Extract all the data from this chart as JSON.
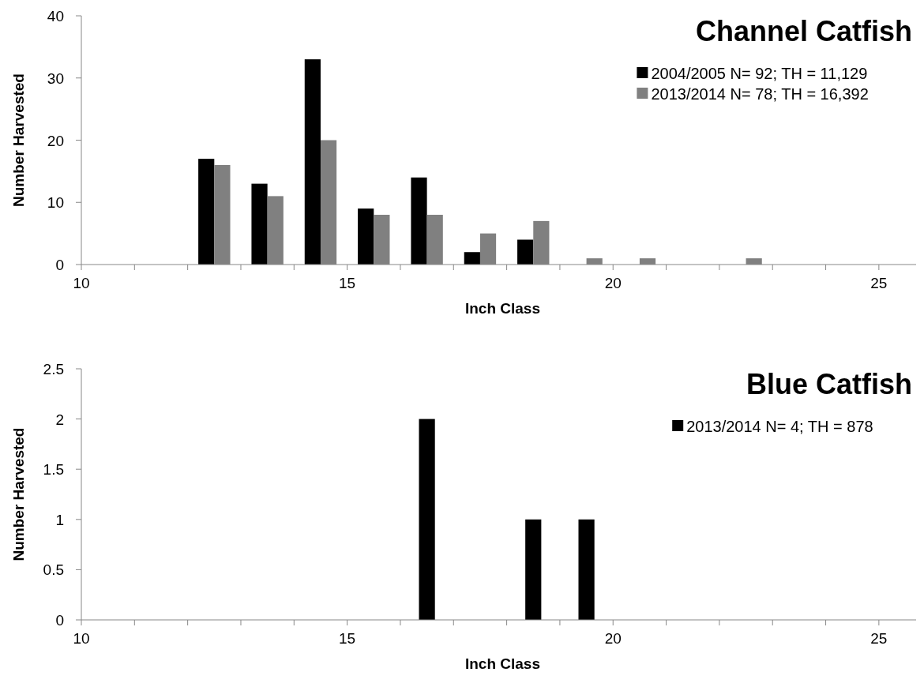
{
  "chart_data": [
    {
      "type": "bar",
      "title": "Channel Catfish",
      "xlabel": "Inch Class",
      "ylabel": "Number Harvested",
      "x": [
        12.5,
        13.5,
        14.5,
        15.5,
        16.5,
        17.5,
        18.5,
        19.5,
        20.5,
        22.5
      ],
      "series": [
        {
          "name": "2004/2005 N= 92; TH = 11,129",
          "color": "#000000",
          "values": [
            17,
            13,
            33,
            9,
            14,
            2,
            4,
            null,
            null,
            null
          ]
        },
        {
          "name": "2013/2014 N= 78; TH = 16,392",
          "color": "#808080",
          "values": [
            16,
            11,
            20,
            8,
            8,
            5,
            7,
            1,
            1,
            1
          ]
        }
      ],
      "xlim": [
        10,
        25.7
      ],
      "xticks": [
        10,
        {
          "value": 11,
          "label": null
        },
        {
          "value": 12,
          "label": null
        },
        {
          "value": 13,
          "label": null
        },
        {
          "value": 14,
          "label": null
        },
        15,
        {
          "value": 16,
          "label": null
        },
        {
          "value": 17,
          "label": null
        },
        {
          "value": 18,
          "label": null
        },
        {
          "value": 19,
          "label": null
        },
        20,
        {
          "value": 21,
          "label": null
        },
        {
          "value": 22,
          "label": null
        },
        {
          "value": 23,
          "label": null
        },
        {
          "value": 24,
          "label": null
        },
        25
      ],
      "ylim": [
        0,
        40
      ],
      "yticks": [
        0,
        10,
        20,
        30,
        40
      ],
      "legend": "top right"
    },
    {
      "type": "bar",
      "title": "Blue Catfish",
      "xlabel": "Inch Class",
      "ylabel": "Number Harvested",
      "x": [
        16.5,
        18.5,
        19.5
      ],
      "series": [
        {
          "name": "2013/2014 N= 4; TH = 878",
          "color": "#000000",
          "values": [
            2,
            1,
            1
          ]
        }
      ],
      "xlim": [
        10,
        25.7
      ],
      "xticks": [
        10,
        {
          "value": 11,
          "label": null
        },
        {
          "value": 12,
          "label": null
        },
        {
          "value": 13,
          "label": null
        },
        {
          "value": 14,
          "label": null
        },
        15,
        {
          "value": 16,
          "label": null
        },
        {
          "value": 17,
          "label": null
        },
        {
          "value": 18,
          "label": null
        },
        {
          "value": 19,
          "label": null
        },
        20,
        {
          "value": 21,
          "label": null
        },
        {
          "value": 22,
          "label": null
        },
        {
          "value": 23,
          "label": null
        },
        {
          "value": 24,
          "label": null
        },
        25
      ],
      "ylim": [
        0,
        2.5
      ],
      "yticks": [
        0,
        0.5,
        1,
        1.5,
        2,
        2.5
      ],
      "legend": "top right"
    }
  ]
}
